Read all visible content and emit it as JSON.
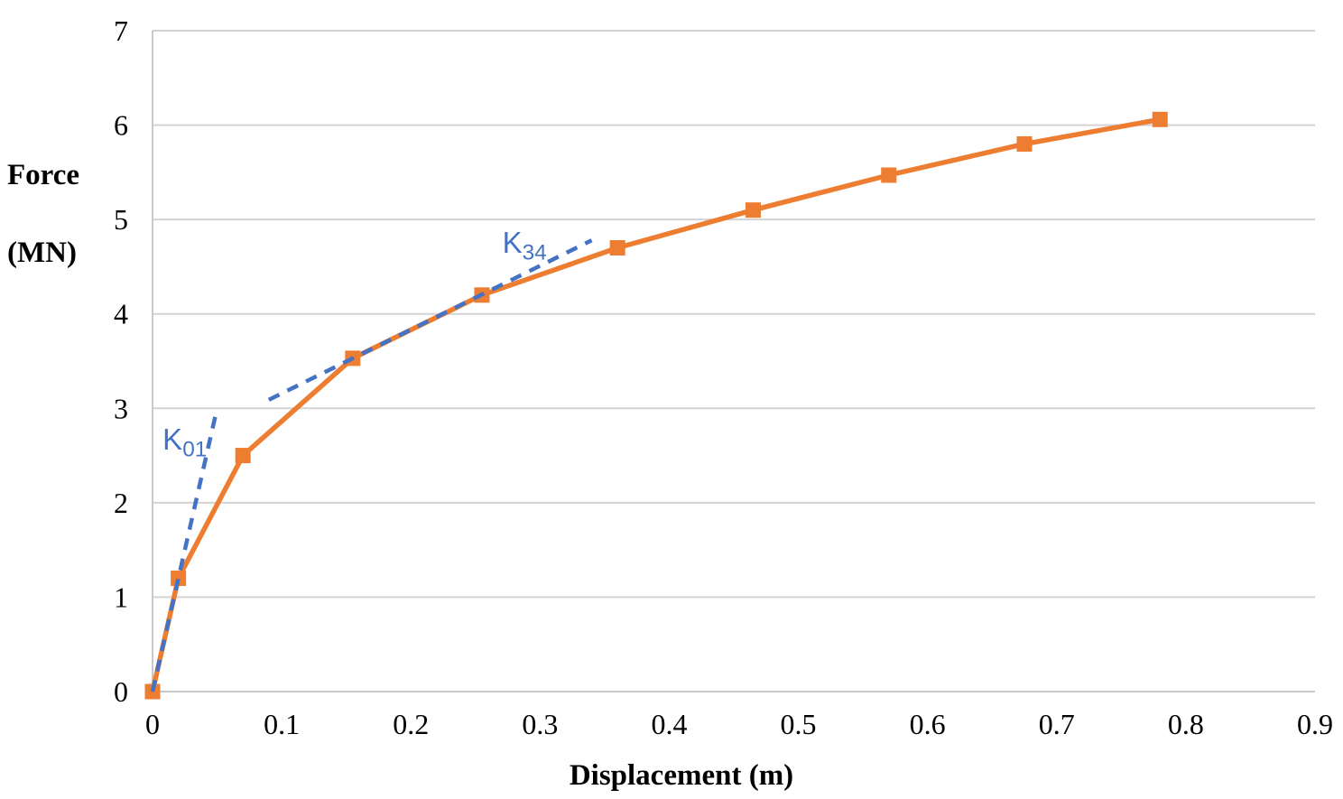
{
  "chart_data": {
    "type": "line",
    "title": "",
    "xlabel": "Displacement (m)",
    "ylabel_line1": "Force",
    "ylabel_line2": "(MN)",
    "xlim": [
      0,
      0.9
    ],
    "ylim": [
      0,
      7
    ],
    "grid": "horizontal-only",
    "legend": "none",
    "xticks": {
      "values": [
        0,
        0.1,
        0.2,
        0.3,
        0.4,
        0.5,
        0.6,
        0.7,
        0.8,
        0.9
      ],
      "labels": [
        "0",
        "0.1",
        "0.2",
        "0.3",
        "0.4",
        "0.5",
        "0.6",
        "0.7",
        "0.8",
        "0.9"
      ]
    },
    "yticks": {
      "values": [
        0,
        1,
        2,
        3,
        4,
        5,
        6,
        7
      ],
      "labels": [
        "0",
        "1",
        "2",
        "3",
        "4",
        "5",
        "6",
        "7"
      ]
    },
    "series": [
      {
        "name": "force-displacement-curve",
        "color": "#ED7D31",
        "marker": "square",
        "points": [
          [
            0,
            0
          ],
          [
            0.02,
            1.2
          ],
          [
            0.07,
            2.5
          ],
          [
            0.155,
            3.53
          ],
          [
            0.255,
            4.2
          ],
          [
            0.36,
            4.7
          ],
          [
            0.465,
            5.1
          ],
          [
            0.57,
            5.47
          ],
          [
            0.675,
            5.8
          ],
          [
            0.78,
            6.06
          ]
        ]
      }
    ],
    "annotations": [
      {
        "name": "K01",
        "label": "K",
        "sub": "01",
        "color": "#4472C4",
        "style": "dashed",
        "from": [
          0,
          0
        ],
        "to": [
          0.05,
          3.0
        ],
        "label_pos": [
          0.025,
          2.67
        ]
      },
      {
        "name": "K34",
        "label": "K",
        "sub": "34",
        "color": "#4472C4",
        "style": "dashed",
        "from": [
          0.09,
          3.09
        ],
        "to": [
          0.34,
          4.78
        ],
        "label_pos": [
          0.288,
          4.75
        ]
      }
    ],
    "colors": {
      "series_orange": "#ED7D31",
      "annotation_blue": "#4472C4",
      "gridline_gray": "#D3D3D3",
      "axis_gray": "#C9C9C9",
      "text_black": "#000000"
    }
  }
}
